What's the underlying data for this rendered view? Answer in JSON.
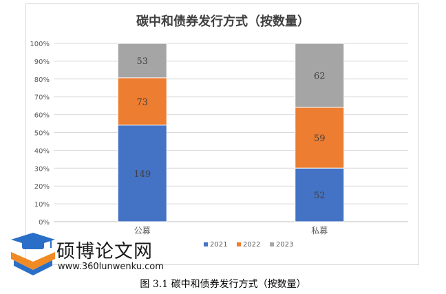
{
  "chart_data": {
    "type": "bar",
    "stacked": "percent",
    "title": "碳中和债券发行方式（按数量）",
    "categories": [
      "公募",
      "私募"
    ],
    "series": [
      {
        "name": "2021",
        "color": "#4472c4",
        "values": [
          149,
          52
        ]
      },
      {
        "name": "2022",
        "color": "#ed7d31",
        "values": [
          73,
          59
        ]
      },
      {
        "name": "2023",
        "color": "#a5a5a5",
        "values": [
          53,
          62
        ]
      }
    ],
    "y_ticks": [
      "0%",
      "10%",
      "20%",
      "30%",
      "40%",
      "50%",
      "60%",
      "70%",
      "80%",
      "90%",
      "100%"
    ],
    "ylim": [
      0,
      100
    ],
    "grid": true,
    "legend_position": "bottom"
  },
  "caption": "图 3.1 碳中和债券发行方式（按数量）",
  "watermark": {
    "name": "硕博论文网",
    "url": "www.360lunwenku.com",
    "colors": {
      "blue": "#2a6fc7",
      "orange": "#f08a24"
    }
  }
}
